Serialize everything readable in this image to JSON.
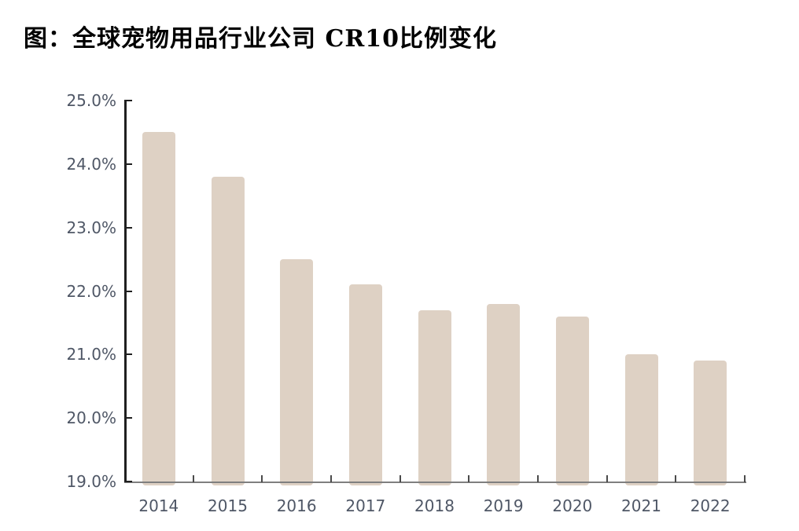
{
  "title": "图：全球宠物用品行业公司 CR10比例变化",
  "colors": {
    "bar": "#ded1c4",
    "y_axis": "#1f1f1f",
    "x_axis": "#7f7f7f",
    "tick_label": "#4f5766",
    "title": "#000000",
    "background": "#ffffff"
  },
  "chart_data": {
    "type": "bar",
    "title": "图：全球宠物用品行业公司 CR10比例变化",
    "categories": [
      "2014",
      "2015",
      "2016",
      "2017",
      "2018",
      "2019",
      "2020",
      "2021",
      "2022"
    ],
    "values": [
      24.5,
      23.8,
      22.5,
      22.1,
      21.7,
      21.8,
      21.6,
      21.0,
      20.9
    ],
    "xlabel": "",
    "ylabel": "",
    "ylim": [
      19.0,
      25.0
    ],
    "ytick_step": 1.0,
    "ytick_labels": [
      "19.0%",
      "20.0%",
      "21.0%",
      "22.0%",
      "23.0%",
      "24.0%",
      "25.0%"
    ],
    "grid": false,
    "legend_position": "none",
    "bar_color": "#ded1c4"
  }
}
